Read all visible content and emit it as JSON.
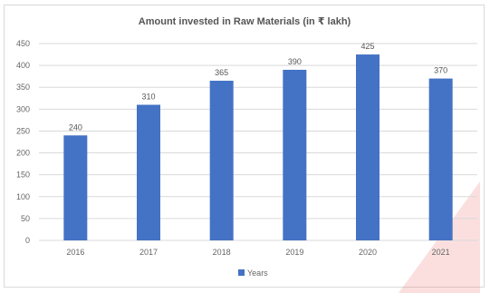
{
  "chart_data": {
    "type": "bar",
    "title": "Amount invested in Raw Materials (in ₹ lakh)",
    "categories": [
      "2016",
      "2017",
      "2018",
      "2019",
      "2020",
      "2021"
    ],
    "series": [
      {
        "name": "Years",
        "values": [
          240,
          310,
          365,
          390,
          425,
          370
        ]
      }
    ],
    "ylim": [
      0,
      450
    ],
    "yticks": [
      0,
      50,
      100,
      150,
      200,
      250,
      300,
      350,
      400,
      450
    ],
    "grid": true,
    "legend_position": "bottom",
    "bar_color": "#4472c4",
    "grid_color": "#d9d9d9"
  }
}
